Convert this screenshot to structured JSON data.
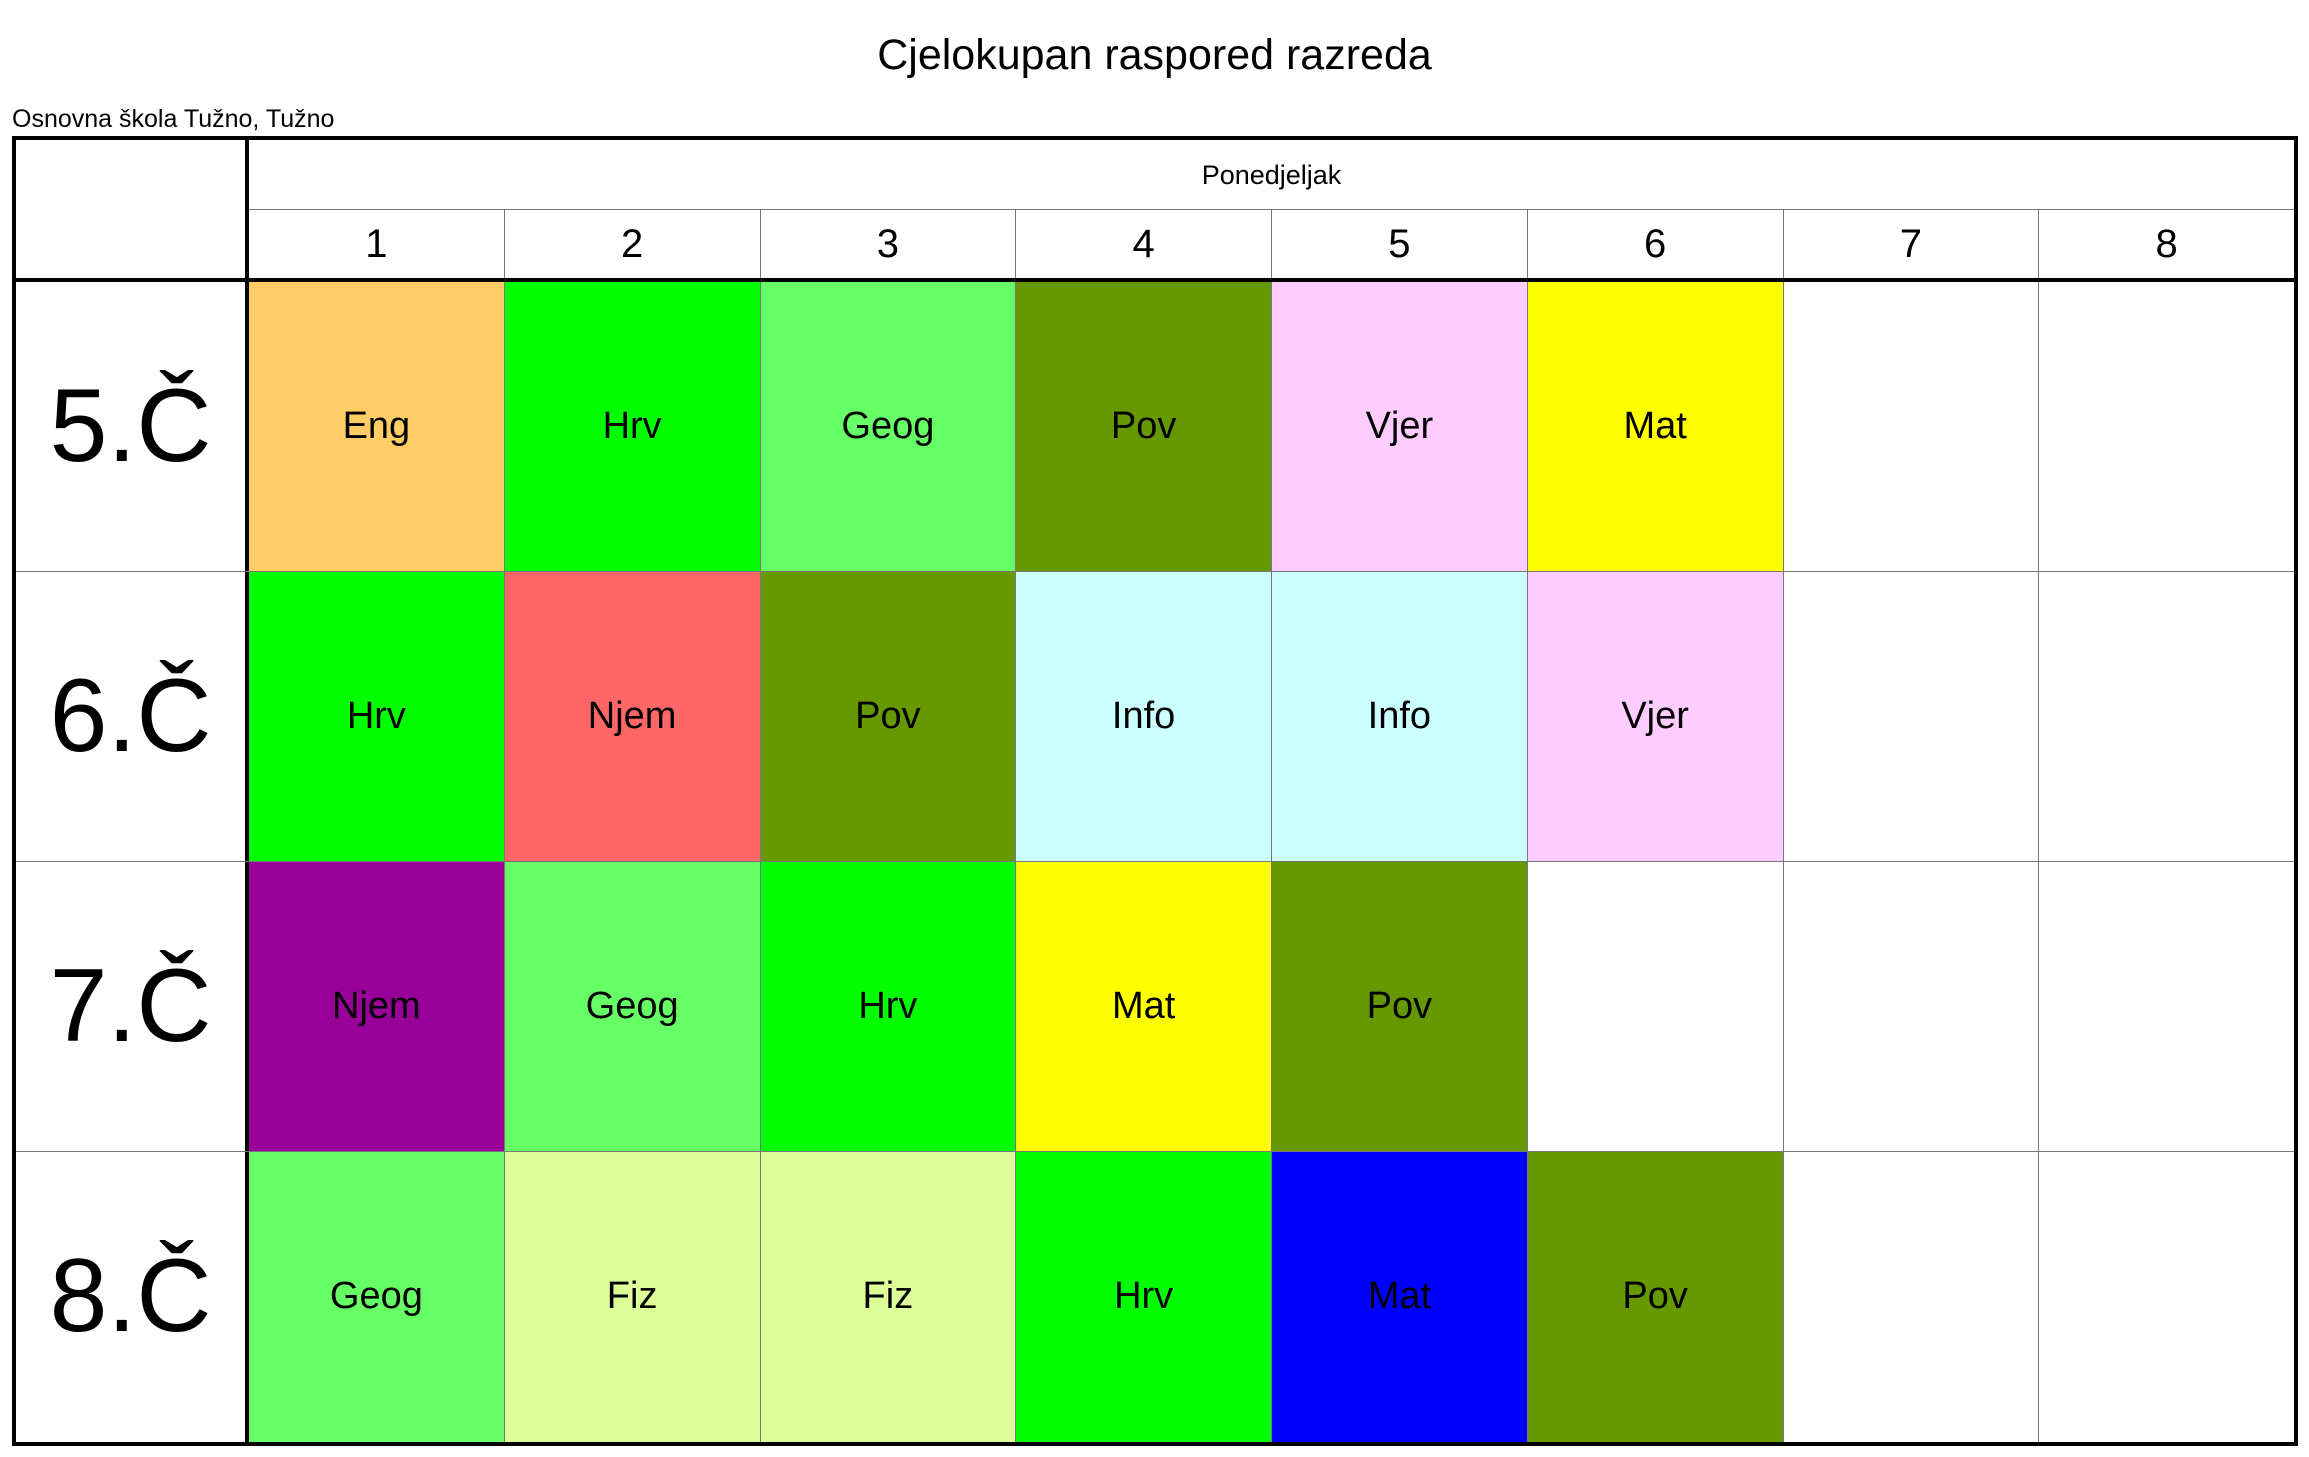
{
  "page": {
    "title": "Cjelokupan raspored razreda",
    "school": "Osnovna škola Tužno, Tužno"
  },
  "timetable": {
    "day": "Ponedjeljak",
    "periods": [
      "1",
      "2",
      "3",
      "4",
      "5",
      "6",
      "7",
      "8"
    ],
    "rows": [
      {
        "class": "5.Č",
        "lessons": [
          {
            "subject": "Eng",
            "color": "#ffcc66"
          },
          {
            "subject": "Hrv",
            "color": "#00ff00"
          },
          {
            "subject": "Geog",
            "color": "#66ff66"
          },
          {
            "subject": "Pov",
            "color": "#669900"
          },
          {
            "subject": "Vjer",
            "color": "#ffccff"
          },
          {
            "subject": "Mat",
            "color": "#ffff00"
          },
          {
            "subject": "",
            "color": "#ffffff"
          },
          {
            "subject": "",
            "color": "#ffffff"
          }
        ]
      },
      {
        "class": "6.Č",
        "lessons": [
          {
            "subject": "Hrv",
            "color": "#00ff00"
          },
          {
            "subject": "Njem",
            "color": "#ff6666"
          },
          {
            "subject": "Pov",
            "color": "#669900"
          },
          {
            "subject": "Info",
            "color": "#ccffff"
          },
          {
            "subject": "Info",
            "color": "#ccffff"
          },
          {
            "subject": "Vjer",
            "color": "#ffccff"
          },
          {
            "subject": "",
            "color": "#ffffff"
          },
          {
            "subject": "",
            "color": "#ffffff"
          }
        ]
      },
      {
        "class": "7.Č",
        "lessons": [
          {
            "subject": "Njem",
            "color": "#990099"
          },
          {
            "subject": "Geog",
            "color": "#66ff66"
          },
          {
            "subject": "Hrv",
            "color": "#00ff00"
          },
          {
            "subject": "Mat",
            "color": "#ffff00"
          },
          {
            "subject": "Pov",
            "color": "#669900"
          },
          {
            "subject": "",
            "color": "#ffffff"
          },
          {
            "subject": "",
            "color": "#ffffff"
          },
          {
            "subject": "",
            "color": "#ffffff"
          }
        ]
      },
      {
        "class": "8.Č",
        "lessons": [
          {
            "subject": "Geog",
            "color": "#66ff66"
          },
          {
            "subject": "Fiz",
            "color": "#ddff99"
          },
          {
            "subject": "Fiz",
            "color": "#ddff99"
          },
          {
            "subject": "Hrv",
            "color": "#00ff00"
          },
          {
            "subject": "Mat",
            "color": "#0000ff"
          },
          {
            "subject": "Pov",
            "color": "#669900"
          },
          {
            "subject": "",
            "color": "#ffffff"
          },
          {
            "subject": "",
            "color": "#ffffff"
          }
        ]
      }
    ]
  }
}
